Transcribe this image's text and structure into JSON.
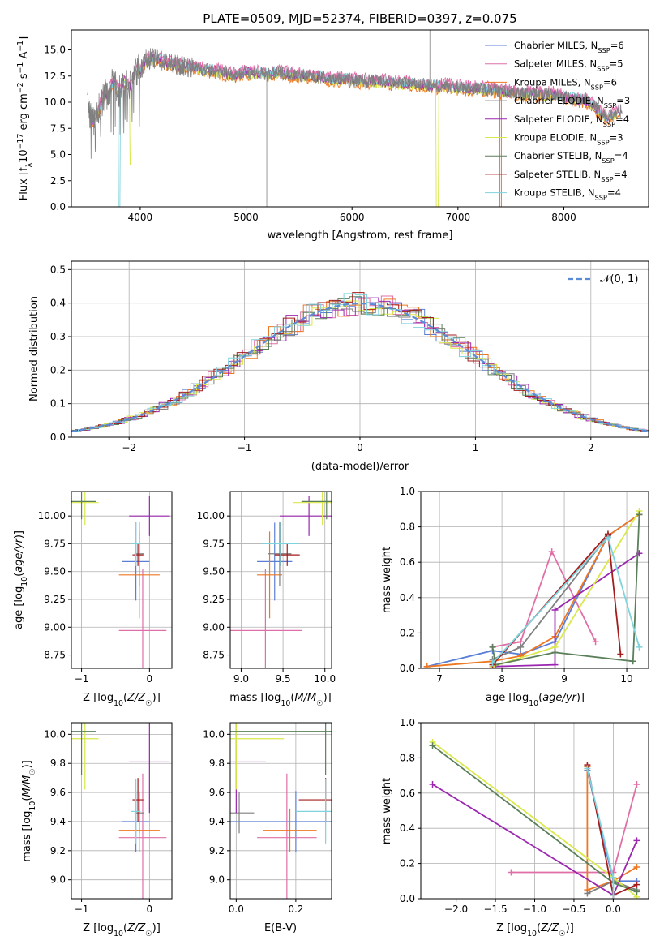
{
  "figure": {
    "title": "PLATE=0509, MJD=52374, FIBERID=0397, z=0.075"
  },
  "colors": {
    "Chabrier MILES": "#5b7fd6",
    "Salpeter MILES": "#e06fa8",
    "Kroupa MILES": "#ee7722",
    "Chabrier ELODIE": "#7f7f7f",
    "Salpeter ELODIE": "#9b27b0",
    "Kroupa ELODIE": "#d9e84a",
    "Chabrier STELIB": "#5a7f5a",
    "Salpeter STELIB": "#a51c1c",
    "Kroupa STELIB": "#7fd3dd"
  },
  "chart_data": [
    {
      "id": "spectrum",
      "type": "line",
      "title": "PLATE=0509, MJD=52374, FIBERID=0397, z=0.075",
      "xlabel": "wavelength [Angstrom, rest frame]",
      "ylabel": "Flux [f_λ 10^-17 erg cm^-2 s^-1 A^-1]",
      "xlim": [
        3350,
        8800
      ],
      "ylim": [
        0,
        16.9
      ],
      "xticks": [
        4000,
        5000,
        6000,
        7000,
        8000
      ],
      "yticks": [
        0.0,
        2.5,
        5.0,
        7.5,
        10.0,
        12.5,
        15.0
      ],
      "grid": false,
      "legend_position": "top-right",
      "data_color": "#808080",
      "legend": [
        {
          "name": "Chabrier MILES",
          "nssp": 6
        },
        {
          "name": "Salpeter MILES",
          "nssp": 5
        },
        {
          "name": "Kroupa MILES",
          "nssp": 6
        },
        {
          "name": "Chabrier ELODIE",
          "nssp": 3
        },
        {
          "name": "Salpeter ELODIE",
          "nssp": 4
        },
        {
          "name": "Kroupa ELODIE",
          "nssp": 3
        },
        {
          "name": "Chabrier STELIB",
          "nssp": 4
        },
        {
          "name": "Salpeter STELIB",
          "nssp": 4
        },
        {
          "name": "Kroupa STELIB",
          "nssp": 4
        }
      ],
      "continuum": [
        [
          3500,
          10.0
        ],
        [
          3550,
          8.0
        ],
        [
          3600,
          9.0
        ],
        [
          3650,
          10.5
        ],
        [
          3700,
          11.0
        ],
        [
          3750,
          12.0
        ],
        [
          3800,
          11.0
        ],
        [
          3850,
          12.0
        ],
        [
          3900,
          11.5
        ],
        [
          3950,
          13.0
        ],
        [
          4000,
          13.0
        ],
        [
          4050,
          14.0
        ],
        [
          4100,
          14.2
        ],
        [
          4200,
          14.0
        ],
        [
          4300,
          13.6
        ],
        [
          4400,
          13.5
        ],
        [
          4500,
          13.3
        ],
        [
          4600,
          13.1
        ],
        [
          4700,
          13.0
        ],
        [
          4800,
          12.8
        ],
        [
          4900,
          12.6
        ],
        [
          5000,
          12.9
        ],
        [
          5100,
          12.8
        ],
        [
          5200,
          12.6
        ],
        [
          5300,
          12.8
        ],
        [
          5400,
          12.7
        ],
        [
          5500,
          12.6
        ],
        [
          5600,
          12.5
        ],
        [
          5700,
          12.4
        ],
        [
          5800,
          12.2
        ],
        [
          5900,
          12.2
        ],
        [
          6000,
          12.1
        ],
        [
          6100,
          12.0
        ],
        [
          6200,
          12.0
        ],
        [
          6300,
          12.0
        ],
        [
          6400,
          11.8
        ],
        [
          6500,
          11.8
        ],
        [
          6600,
          11.7
        ],
        [
          6700,
          11.6
        ],
        [
          6800,
          11.5
        ],
        [
          6900,
          11.6
        ],
        [
          7000,
          11.4
        ],
        [
          7100,
          11.3
        ],
        [
          7200,
          11.3
        ],
        [
          7300,
          11.2
        ],
        [
          7400,
          11.1
        ],
        [
          7500,
          11.0
        ],
        [
          7600,
          10.8
        ],
        [
          7700,
          10.9
        ],
        [
          7800,
          10.7
        ],
        [
          7900,
          10.8
        ],
        [
          8000,
          10.5
        ],
        [
          8100,
          10.3
        ],
        [
          8200,
          10.2
        ],
        [
          8300,
          9.5
        ],
        [
          8400,
          8.5
        ],
        [
          8500,
          9.0
        ],
        [
          8550,
          9.2
        ]
      ]
    },
    {
      "id": "residuals",
      "type": "histogram",
      "xlabel": "(data-model)/error",
      "ylabel": "Normed distribution",
      "xlim": [
        -2.5,
        2.5
      ],
      "ylim": [
        0,
        0.525
      ],
      "xticks": [
        -2,
        -1,
        0,
        1,
        2
      ],
      "yticks": [
        0.0,
        0.1,
        0.2,
        0.3,
        0.4,
        0.5
      ],
      "grid": true,
      "legend_position": "top-right",
      "reference_curve": {
        "name": "𝒩(0, 1)",
        "color": "#5b8bd6",
        "style": "dashed"
      },
      "bin_width": 0.1
    },
    {
      "id": "age_vs_Z",
      "type": "errorbar",
      "xlabel": "Z [log10(Z/Z☉)]",
      "ylabel": "age [log10(age/yr)]",
      "xlim": [
        -1.15,
        0.33
      ],
      "ylim": [
        8.63,
        10.22
      ],
      "xticks": [
        -1,
        0
      ],
      "yticks": [
        8.75,
        9.0,
        9.25,
        9.5,
        9.75,
        10.0
      ],
      "grid": true
    },
    {
      "id": "age_vs_mass",
      "type": "errorbar",
      "xlabel": "mass [log10(M/M☉)]",
      "ylabel": "",
      "xlim": [
        8.87,
        10.08
      ],
      "ylim": [
        8.63,
        10.22
      ],
      "xticks": [
        9.0,
        9.5,
        10.0
      ],
      "yticks": [
        8.75,
        9.0,
        9.25,
        9.5,
        9.75,
        10.0
      ],
      "grid": true
    },
    {
      "id": "weight_vs_age",
      "type": "line",
      "xlabel": "age [log10(age/yr)]",
      "ylabel": "mass weight",
      "xlim": [
        6.7,
        10.35
      ],
      "ylim": [
        0,
        1.0
      ],
      "xticks": [
        7,
        8,
        9,
        10
      ],
      "yticks": [
        0.0,
        0.2,
        0.4,
        0.6,
        0.8,
        1.0
      ],
      "grid": true,
      "series": [
        {
          "name": "Chabrier MILES",
          "points": [
            [
              6.8,
              0.01
            ],
            [
              7.85,
              0.1
            ],
            [
              8.3,
              0.08
            ],
            [
              8.85,
              0.15
            ],
            [
              9.7,
              0.75
            ],
            [
              10.2,
              0.87
            ]
          ]
        },
        {
          "name": "Salpeter MILES",
          "points": [
            [
              7.85,
              0.12
            ],
            [
              8.3,
              0.15
            ],
            [
              8.8,
              0.66
            ],
            [
              9.5,
              0.15
            ]
          ]
        },
        {
          "name": "Kroupa MILES",
          "points": [
            [
              6.8,
              0.01
            ],
            [
              7.85,
              0.04
            ],
            [
              8.3,
              0.07
            ],
            [
              8.85,
              0.18
            ],
            [
              9.7,
              0.75
            ],
            [
              10.2,
              0.87
            ]
          ]
        },
        {
          "name": "Chabrier ELODIE",
          "points": [
            [
              7.85,
              0.05
            ],
            [
              8.3,
              0.12
            ],
            [
              9.7,
              0.75
            ]
          ]
        },
        {
          "name": "Salpeter ELODIE",
          "points": [
            [
              7.85,
              0.01
            ],
            [
              8.85,
              0.02
            ],
            [
              8.85,
              0.33
            ],
            [
              10.2,
              0.65
            ]
          ]
        },
        {
          "name": "Kroupa ELODIE",
          "points": [
            [
              7.85,
              0.01
            ],
            [
              8.85,
              0.12
            ],
            [
              10.2,
              0.89
            ]
          ]
        },
        {
          "name": "Chabrier STELIB",
          "points": [
            [
              7.85,
              0.12
            ],
            [
              7.9,
              0.02
            ],
            [
              8.85,
              0.09
            ],
            [
              10.1,
              0.04
            ],
            [
              10.2,
              0.87
            ]
          ]
        },
        {
          "name": "Salpeter STELIB",
          "points": [
            [
              7.85,
              0.02
            ],
            [
              9.7,
              0.76
            ],
            [
              9.9,
              0.08
            ]
          ]
        },
        {
          "name": "Kroupa STELIB",
          "points": [
            [
              7.85,
              0.03
            ],
            [
              9.7,
              0.74
            ],
            [
              10.2,
              0.12
            ]
          ]
        }
      ]
    },
    {
      "id": "mass_vs_Z",
      "type": "errorbar",
      "xlabel": "Z [log10(Z/Z☉)]",
      "ylabel": "mass [log10(M/M☉)]",
      "xlim": [
        -1.15,
        0.33
      ],
      "ylim": [
        8.87,
        10.08
      ],
      "xticks": [
        -1,
        0
      ],
      "yticks": [
        9.0,
        9.2,
        9.4,
        9.6,
        9.8,
        10.0
      ],
      "grid": true
    },
    {
      "id": "mass_vs_ebv",
      "type": "errorbar",
      "xlabel": "E(B-V)",
      "ylabel": "",
      "xlim": [
        -0.02,
        0.32
      ],
      "ylim": [
        8.87,
        10.08
      ],
      "xticks": [
        0.0,
        0.2
      ],
      "yticks": [
        9.0,
        9.2,
        9.4,
        9.6,
        9.8,
        10.0
      ],
      "grid": true
    },
    {
      "id": "weight_vs_Z",
      "type": "line",
      "xlabel": "Z [log10(Z/Z☉)]",
      "ylabel": "mass weight",
      "xlim": [
        -2.45,
        0.45
      ],
      "ylim": [
        0,
        1.0
      ],
      "xticks": [
        -2.0,
        -1.5,
        -1.0,
        -0.5,
        0.0
      ],
      "yticks": [
        0.0,
        0.2,
        0.4,
        0.6,
        0.8,
        1.0
      ],
      "grid": true,
      "series": [
        {
          "name": "Chabrier MILES",
          "points": [
            [
              -0.33,
              0.73
            ],
            [
              0.0,
              0.1
            ],
            [
              0.3,
              0.1
            ]
          ]
        },
        {
          "name": "Salpeter MILES",
          "points": [
            [
              -1.3,
              0.15
            ],
            [
              0.0,
              0.15
            ],
            [
              0.3,
              0.65
            ]
          ]
        },
        {
          "name": "Kroupa MILES",
          "points": [
            [
              -0.33,
              0.75
            ],
            [
              -0.33,
              0.05
            ],
            [
              0.0,
              0.1
            ],
            [
              0.3,
              0.18
            ]
          ]
        },
        {
          "name": "Chabrier ELODIE",
          "points": [
            [
              -0.33,
              0.03
            ],
            [
              0.0,
              0.1
            ],
            [
              0.3,
              0.05
            ]
          ]
        },
        {
          "name": "Salpeter ELODIE",
          "points": [
            [
              -2.3,
              0.65
            ],
            [
              0.0,
              0.02
            ],
            [
              0.3,
              0.33
            ]
          ]
        },
        {
          "name": "Kroupa ELODIE",
          "points": [
            [
              -2.3,
              0.89
            ],
            [
              0.0,
              0.12
            ],
            [
              0.3,
              0.01
            ]
          ]
        },
        {
          "name": "Chabrier STELIB",
          "points": [
            [
              -2.3,
              0.87
            ],
            [
              0.0,
              0.09
            ],
            [
              0.3,
              0.04
            ]
          ]
        },
        {
          "name": "Salpeter STELIB",
          "points": [
            [
              -0.33,
              0.76
            ],
            [
              0.0,
              0.02
            ],
            [
              0.3,
              0.08
            ]
          ]
        },
        {
          "name": "Kroupa STELIB",
          "points": [
            [
              -0.33,
              0.74
            ],
            [
              0.0,
              0.12
            ],
            [
              0.0,
              0.02
            ]
          ]
        }
      ]
    }
  ],
  "error_bars": [
    {
      "name": "Chabrier MILES",
      "Z": [
        -0.2,
        0.2
      ],
      "age": [
        9.59,
        0.35
      ],
      "mass": [
        9.4,
        0.21
      ],
      "ebv": [
        0.2,
        0.3
      ]
    },
    {
      "name": "Salpeter MILES",
      "Z": [
        -0.1,
        0.35
      ],
      "age": [
        8.97,
        0.55
      ],
      "mass": [
        9.29,
        0.44
      ],
      "ebv": [
        0.17,
        0.1
      ]
    },
    {
      "name": "Kroupa MILES",
      "Z": [
        -0.15,
        0.3
      ],
      "age": [
        9.47,
        0.39
      ],
      "mass": [
        9.34,
        0.15
      ],
      "ebv": [
        0.18,
        0.09
      ]
    },
    {
      "name": "Chabrier ELODIE",
      "Z": [
        -0.15,
        0.07
      ],
      "age": [
        9.66,
        0.29
      ],
      "mass": [
        9.46,
        0.14
      ],
      "ebv": [
        0.01,
        0.05
      ]
    },
    {
      "name": "Salpeter ELODIE",
      "Z": [
        0.0,
        0.3
      ],
      "age": [
        10.0,
        0.18
      ],
      "mass": [
        9.81,
        0.35
      ],
      "ebv": [
        0.0,
        0.1
      ]
    },
    {
      "name": "Kroupa ELODIE",
      "Z": [
        -0.95,
        0.2
      ],
      "age": [
        10.12,
        0.2
      ],
      "mass": [
        9.97,
        0.35
      ],
      "ebv": [
        0.0,
        0.16
      ]
    },
    {
      "name": "Chabrier STELIB",
      "Z": [
        -1.0,
        0.22
      ],
      "age": [
        10.13,
        0.16
      ],
      "mass": [
        10.02,
        0.3
      ],
      "ebv": [
        0.3,
        0.4
      ]
    },
    {
      "name": "Salpeter STELIB",
      "Z": [
        -0.17,
        0.08
      ],
      "age": [
        9.65,
        0.1
      ],
      "mass": [
        9.55,
        0.15
      ],
      "ebv": [
        0.3,
        0.09
      ]
    },
    {
      "name": "Kroupa STELIB",
      "Z": [
        -0.2,
        0.07
      ],
      "age": [
        9.75,
        0.2
      ],
      "mass": [
        9.47,
        0.22
      ],
      "ebv": [
        0.3,
        0.1
      ]
    }
  ]
}
